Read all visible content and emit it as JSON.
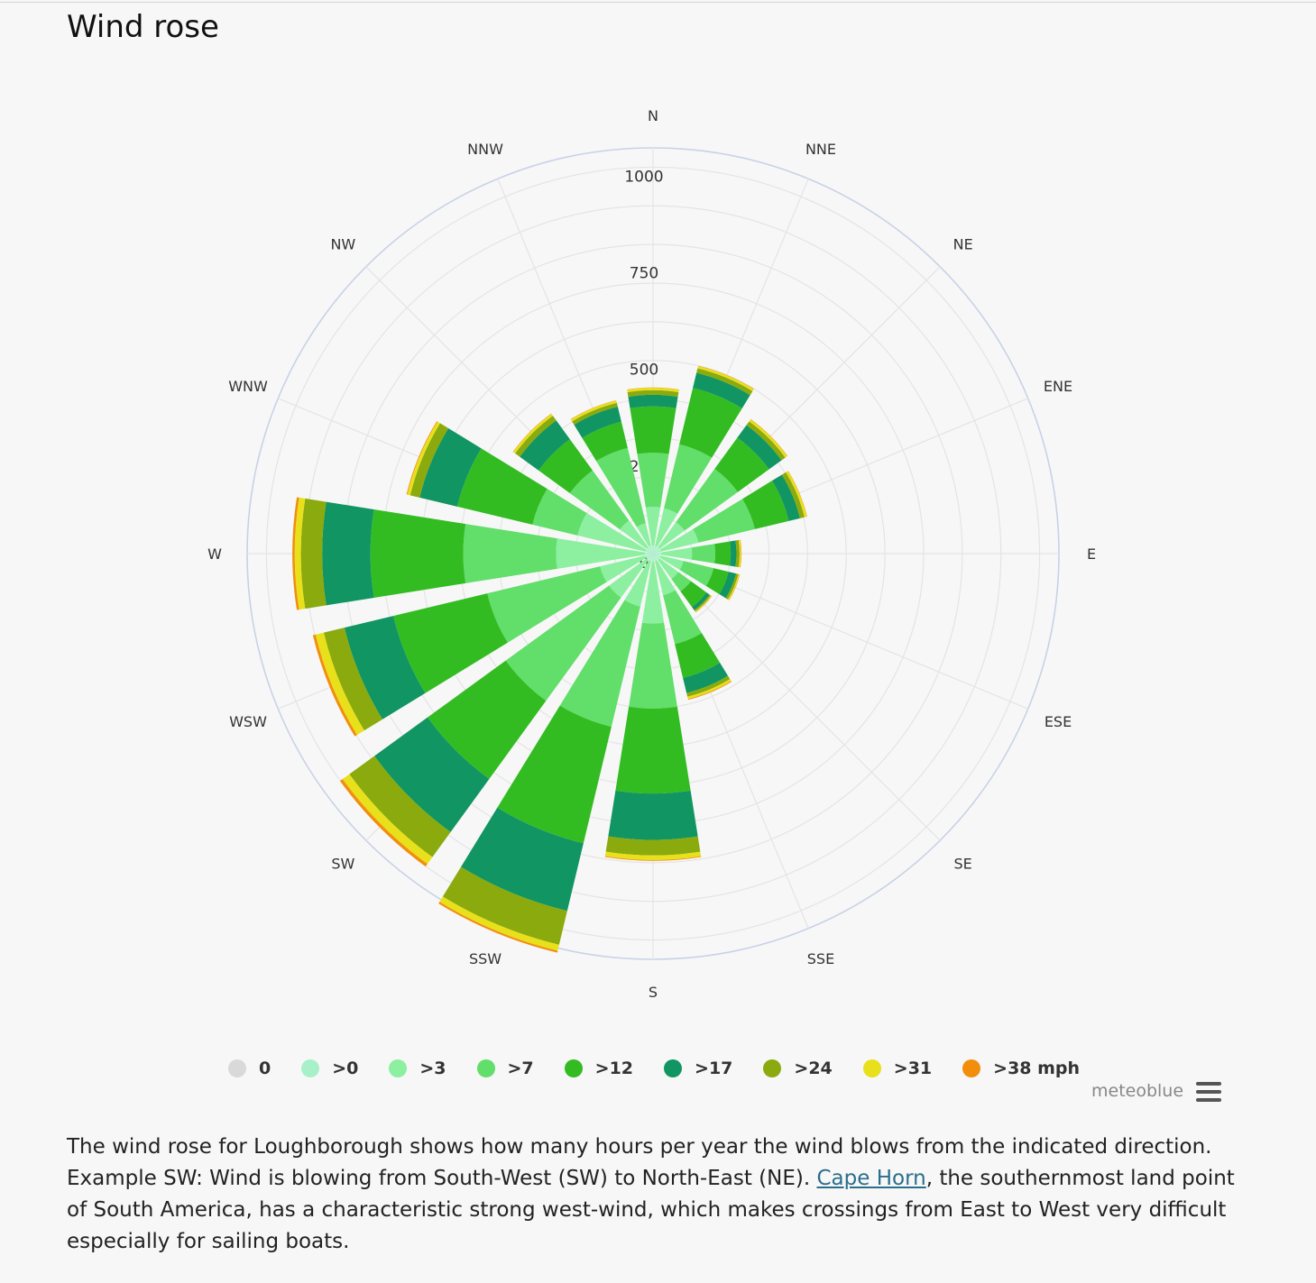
{
  "page": {
    "title": "Wind rose"
  },
  "chart_data": {
    "type": "polar-stacked-bar",
    "directions": [
      "N",
      "NNE",
      "NE",
      "ENE",
      "E",
      "ESE",
      "SE",
      "SSE",
      "S",
      "SSW",
      "SW",
      "WSW",
      "W",
      "WNW",
      "NW",
      "NNW"
    ],
    "radial_ticks": [
      "0",
      "250",
      "500",
      "750",
      "1000"
    ],
    "radial_range": [
      0,
      1050
    ],
    "grid": true,
    "legend_placement": "bottom",
    "series": [
      {
        "name": "0",
        "color": "#d9d9d9",
        "values": [
          1,
          1,
          1,
          1,
          1,
          1,
          1,
          1,
          1,
          1,
          1,
          1,
          1,
          1,
          1,
          1
        ]
      },
      {
        "name": ">0",
        "color": "#a8f0c8",
        "values": [
          20,
          20,
          20,
          20,
          20,
          20,
          20,
          20,
          20,
          20,
          20,
          20,
          20,
          20,
          20,
          20
        ]
      },
      {
        "name": ">3",
        "color": "#8cf0a0",
        "values": [
          100,
          100,
          80,
          100,
          80,
          60,
          60,
          90,
          160,
          120,
          120,
          120,
          230,
          180,
          85,
          60
        ]
      },
      {
        "name": ">7",
        "color": "#62de6a",
        "values": [
          140,
          170,
          170,
          150,
          60,
          80,
          40,
          130,
          220,
          320,
          330,
          300,
          240,
          120,
          160,
          200
        ]
      },
      {
        "name": ">12",
        "color": "#33bc22",
        "values": [
          120,
          150,
          100,
          90,
          40,
          40,
          50,
          90,
          220,
          310,
          250,
          250,
          240,
          200,
          100,
          70
        ]
      },
      {
        "name": ">17",
        "color": "#119562",
        "values": [
          30,
          40,
          40,
          30,
          15,
          20,
          10,
          40,
          120,
          180,
          170,
          130,
          125,
          100,
          60,
          40
        ]
      },
      {
        "name": ">24",
        "color": "#8aaa0d",
        "values": [
          12,
          12,
          12,
          12,
          8,
          6,
          4,
          10,
          40,
          90,
          80,
          55,
          55,
          25,
          15,
          10
        ]
      },
      {
        "name": ">31",
        "color": "#e8e01b",
        "values": [
          6,
          6,
          6,
          6,
          4,
          3,
          2,
          6,
          12,
          16,
          22,
          22,
          16,
          8,
          6,
          6
        ]
      },
      {
        "name": ">38 mph",
        "color": "#f28e0c",
        "values": [
          1,
          1,
          1,
          1,
          1,
          1,
          1,
          2,
          2,
          5,
          8,
          7,
          6,
          2,
          1,
          1
        ]
      }
    ]
  },
  "brand": {
    "name": "meteoblue",
    "menu_icon": "hamburger-icon"
  },
  "description": {
    "part1": "The wind rose for Loughborough shows how many hours per year the wind blows from the indicated direction. Example SW: Wind is blowing from South-West (SW) to North-East (NE). ",
    "link_text": "Cape Horn",
    "part2": ", the southernmost land point of South America, has a characteristic strong west-wind, which makes crossings from East to West very difficult especially for sailing boats."
  }
}
